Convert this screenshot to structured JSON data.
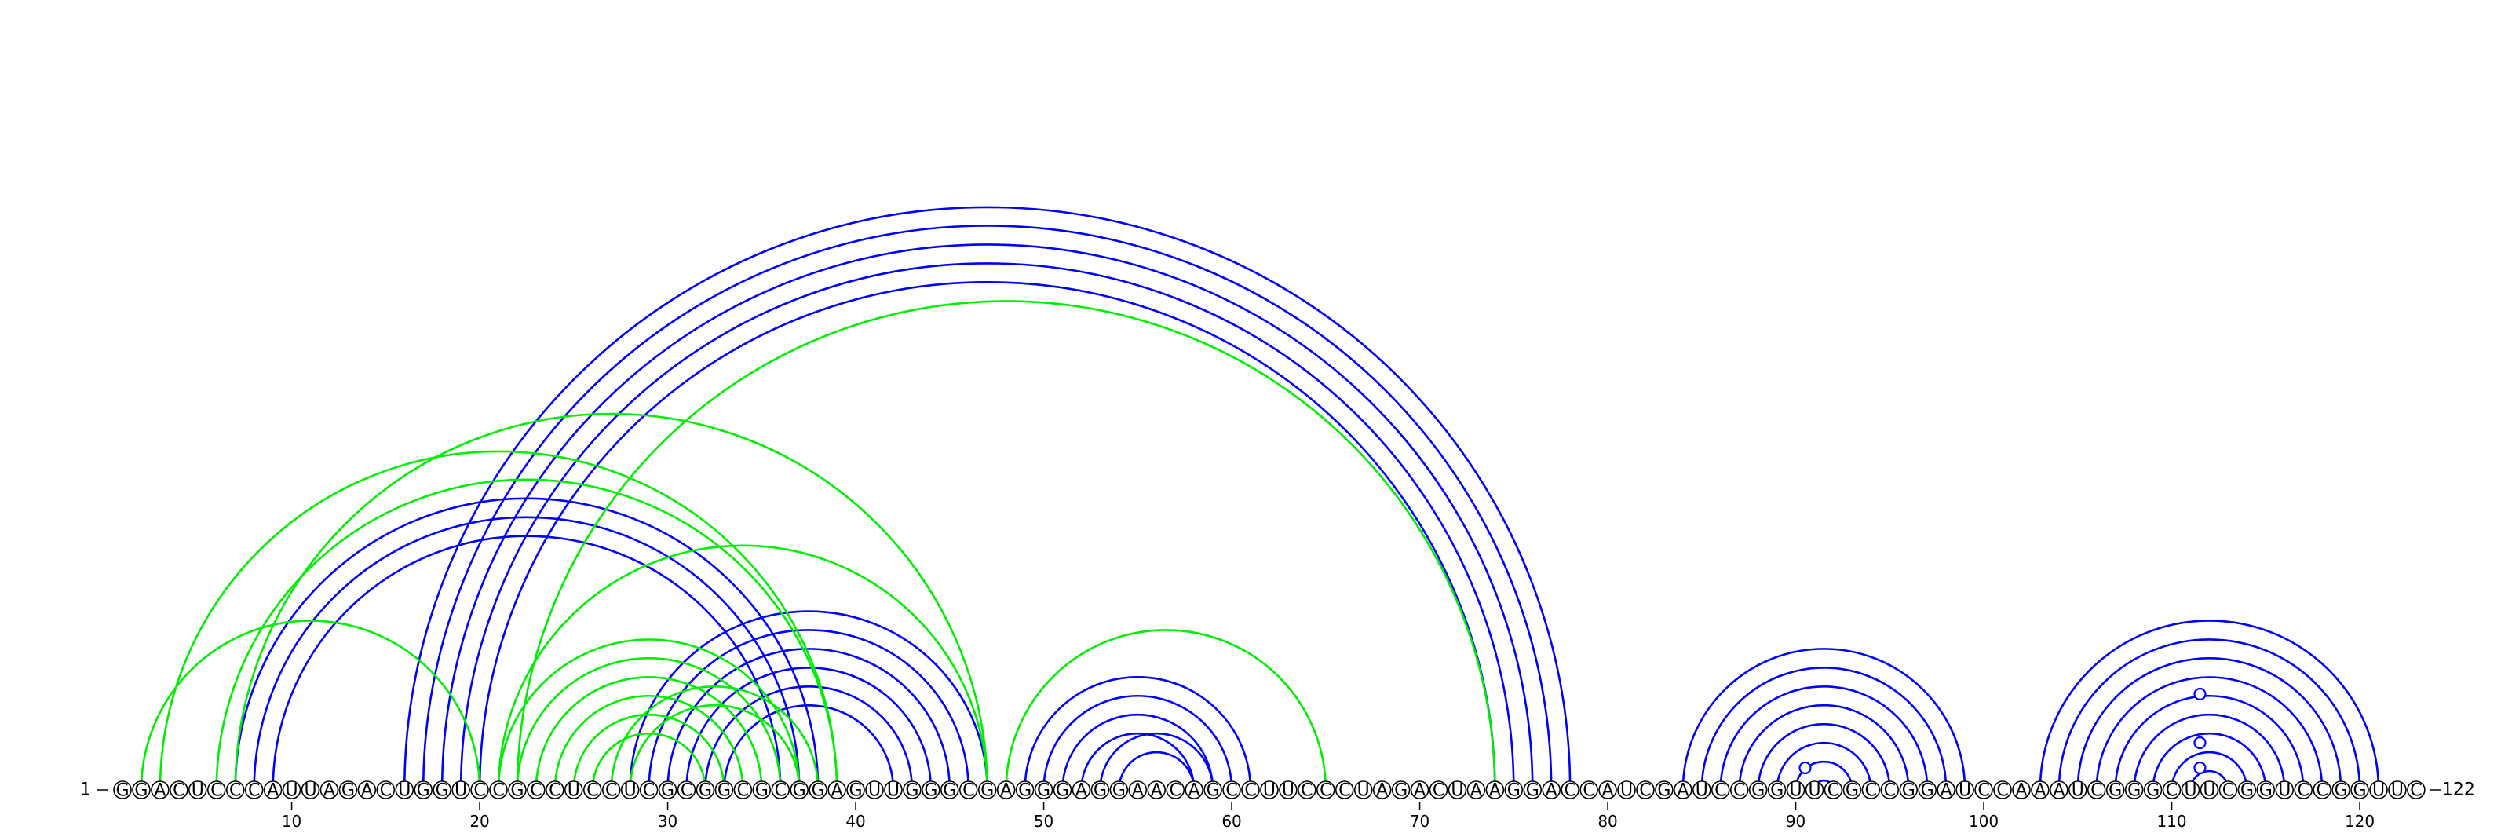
{
  "diagram": {
    "type": "rna-arc-diagram",
    "sequence": "GGACUCCCAUUAGACUGGUCCGCCUCCUCGCGGCGCGGAGUUGGGCGAGGGAGGAACAGCCUUCCCUAGACUAAGGACCAUCGAUCCGGUUCGCCGGAUCCAAAUCGGGCUUCGGUCCGGUUC",
    "start_label": "1",
    "end_label": "122",
    "tick_labels": [
      "10",
      "20",
      "30",
      "40",
      "50",
      "60",
      "70",
      "80",
      "90",
      "100",
      "110",
      "120"
    ],
    "colors": {
      "blue_pairs": "#0000ff",
      "green_pairs": "#00ee00",
      "marker": "#0000ff"
    },
    "blue_pairs": [
      [
        7,
        38
      ],
      [
        8,
        37
      ],
      [
        9,
        36
      ],
      [
        16,
        78
      ],
      [
        17,
        77
      ],
      [
        18,
        76
      ],
      [
        19,
        75
      ],
      [
        20,
        74
      ],
      [
        28,
        47
      ],
      [
        29,
        46
      ],
      [
        30,
        45
      ],
      [
        31,
        44
      ],
      [
        32,
        43
      ],
      [
        33,
        42
      ],
      [
        49,
        61
      ],
      [
        50,
        60
      ],
      [
        51,
        59
      ],
      [
        52,
        58
      ],
      [
        53,
        59
      ],
      [
        54,
        58
      ],
      [
        84,
        99
      ],
      [
        85,
        98
      ],
      [
        86,
        97
      ],
      [
        87,
        96
      ],
      [
        88,
        95
      ],
      [
        89,
        94
      ],
      [
        90,
        93
      ],
      [
        91,
        92
      ],
      [
        103,
        121
      ],
      [
        104,
        120
      ],
      [
        105,
        119
      ],
      [
        106,
        118
      ],
      [
        107,
        117
      ],
      [
        108,
        116
      ],
      [
        109,
        115
      ],
      [
        110,
        114
      ],
      [
        111,
        113
      ]
    ],
    "green_pairs": [
      [
        2,
        20
      ],
      [
        3,
        39
      ],
      [
        6,
        39
      ],
      [
        7,
        47
      ],
      [
        21,
        47
      ],
      [
        22,
        74
      ],
      [
        21,
        37
      ],
      [
        22,
        36
      ],
      [
        23,
        35
      ],
      [
        24,
        34
      ],
      [
        25,
        33
      ],
      [
        26,
        32
      ],
      [
        27,
        38
      ],
      [
        28,
        37
      ],
      [
        48,
        65
      ]
    ],
    "markers": [
      90.5,
      111.5,
      111.5,
      111.5
    ]
  }
}
